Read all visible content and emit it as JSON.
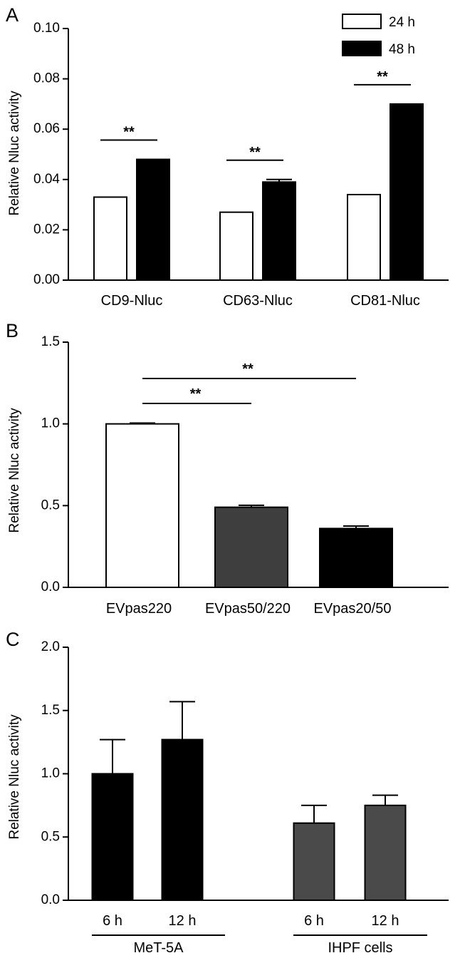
{
  "chart_data": [
    {
      "panel": "A",
      "type": "bar",
      "ylabel": "Relative Nluc activity",
      "ylim": [
        0,
        0.1
      ],
      "yticks": [
        "0.00",
        "0.02",
        "0.04",
        "0.06",
        "0.08",
        "0.10"
      ],
      "categories": [
        "CD9-Nluc",
        "CD63-Nluc",
        "CD81-Nluc"
      ],
      "series": [
        {
          "name": "24 h",
          "values": [
            0.033,
            0.027,
            0.034
          ],
          "errors": [
            0,
            0,
            0
          ],
          "color": "#ffffff"
        },
        {
          "name": "48 h",
          "values": [
            0.048,
            0.039,
            0.07
          ],
          "errors": [
            0,
            0.001,
            0
          ],
          "color": "#000000"
        }
      ],
      "legend": {
        "position": "top-right",
        "entries": [
          "24 h",
          "48 h"
        ]
      },
      "significance": [
        {
          "category": 0,
          "label": "**"
        },
        {
          "category": 1,
          "label": "**"
        },
        {
          "category": 2,
          "label": "**"
        }
      ]
    },
    {
      "panel": "B",
      "type": "bar",
      "ylabel": "Relative Nluc activity",
      "ylim": [
        0,
        1.5
      ],
      "yticks": [
        "0.0",
        "0.5",
        "1.0",
        "1.5"
      ],
      "categories": [
        "EVpas220",
        "EVpas50/220",
        "EVpas20/50"
      ],
      "values": [
        1.0,
        0.49,
        0.36
      ],
      "errors": [
        0.005,
        0.012,
        0.015
      ],
      "colors": [
        "#ffffff",
        "#3e3e3e",
        "#000000"
      ],
      "significance": [
        {
          "from": 0,
          "to": 1,
          "label": "**"
        },
        {
          "from": 0,
          "to": 2,
          "label": "**"
        }
      ]
    },
    {
      "panel": "C",
      "type": "bar",
      "ylabel": "Relative Nluc activity",
      "ylim": [
        0,
        2.0
      ],
      "yticks": [
        "0.0",
        "0.5",
        "1.0",
        "1.5",
        "2.0"
      ],
      "categories": [
        "6 h",
        "12 h",
        "6 h",
        "12 h"
      ],
      "groups": [
        {
          "label": "MeT-5A",
          "bars": [
            0,
            1
          ]
        },
        {
          "label": "IHPF cells",
          "bars": [
            2,
            3
          ]
        }
      ],
      "values": [
        1.0,
        1.27,
        0.61,
        0.75
      ],
      "errors": [
        0.27,
        0.3,
        0.14,
        0.08
      ],
      "colors": [
        "#000000",
        "#000000",
        "#4a4a4a",
        "#4a4a4a"
      ]
    }
  ]
}
